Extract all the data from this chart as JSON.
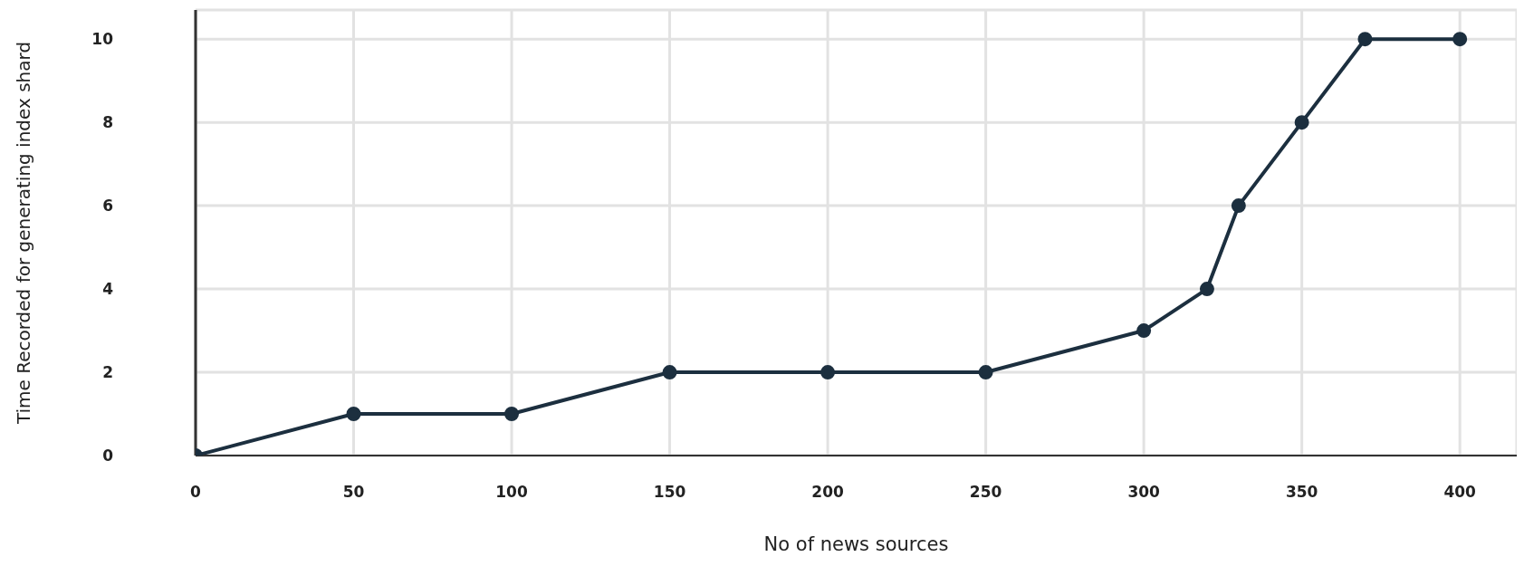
{
  "chart_data": {
    "type": "line",
    "xlabel": "No of news sources",
    "ylabel": "Time Recorded for generating index shard",
    "x": [
      0,
      50,
      100,
      150,
      200,
      250,
      300,
      320,
      330,
      350,
      370,
      400
    ],
    "series": [
      {
        "color": "#1c2f3f",
        "values": [
          0,
          1,
          1,
          2,
          2,
          2,
          3,
          4,
          6,
          8,
          10,
          10
        ]
      }
    ],
    "xlim": [
      0,
      418
    ],
    "xticks": [
      0,
      50,
      100,
      150,
      200,
      250,
      300,
      350,
      400
    ],
    "ylim": [
      0,
      10.7
    ],
    "yticks": [
      0,
      2,
      4,
      6,
      8,
      10
    ],
    "grid": true,
    "marker": "circle",
    "line_style": "solid"
  }
}
